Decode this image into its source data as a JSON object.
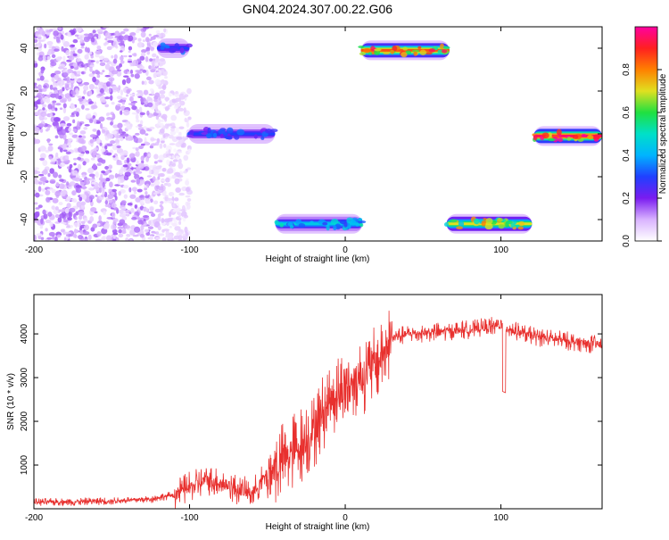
{
  "title": "GN04.2024.307.00.22.G06",
  "chart_data": [
    {
      "type": "heatmap",
      "xlabel": "Height of straight line (km)",
      "ylabel": "Frequency (Hz)",
      "xlim": [
        -200,
        165
      ],
      "ylim": [
        -50,
        50
      ],
      "xticks": [
        -200,
        -100,
        0,
        100
      ],
      "yticks": [
        -40,
        -20,
        0,
        20,
        40
      ],
      "colorbar": {
        "label": "Normalized spectral amplitude",
        "ticks": [
          "0.0",
          "0.2",
          "0.4",
          "0.6",
          "0.8"
        ],
        "range": [
          0,
          1
        ],
        "colors": [
          "#ffffff",
          "#d9b3ff",
          "#7a1cf0",
          "#2040ff",
          "#00b4ff",
          "#00e0c8",
          "#20e040",
          "#e0e020",
          "#ff8000",
          "#ff2020",
          "#ff00a0"
        ]
      },
      "features": [
        {
          "kind": "noise",
          "x": [
            -200,
            -115
          ],
          "y": [
            -50,
            50
          ],
          "amplitude": 0.1
        },
        {
          "kind": "noise",
          "x": [
            -115,
            -100
          ],
          "y": [
            -50,
            20
          ],
          "amplitude": 0.05
        },
        {
          "kind": "trace",
          "x": [
            -121,
            -100
          ],
          "y": 40,
          "amplitude": 0.3
        },
        {
          "kind": "trace",
          "x": [
            -101,
            -45
          ],
          "y": 0,
          "amplitude": 0.3
        },
        {
          "kind": "trace",
          "x": [
            -45,
            11
          ],
          "y": -42,
          "amplitude": 0.45
        },
        {
          "kind": "trace",
          "x": [
            10,
            67
          ],
          "y": 39,
          "amplitude": 0.85
        },
        {
          "kind": "trace",
          "x": [
            65,
            120
          ],
          "y": -42,
          "amplitude": 0.7
        },
        {
          "kind": "trace",
          "x": [
            121,
            165
          ],
          "y": -1,
          "amplitude": 0.95
        }
      ]
    },
    {
      "type": "line",
      "xlabel": "Height of straight line (km)",
      "ylabel": "SNR (10 * v/v)",
      "xlim": [
        -200,
        165
      ],
      "ylim": [
        0,
        4900
      ],
      "xticks": [
        -200,
        -100,
        0,
        100
      ],
      "yticks": [
        1000,
        2000,
        3000,
        4000
      ],
      "color": "#e8302e",
      "series": [
        {
          "x": [
            -200,
            -175,
            -150,
            -125,
            -110,
            -100,
            -90,
            -80,
            -70,
            -60,
            -50,
            -40,
            -30,
            -20,
            -10,
            0,
            10,
            20,
            30,
            40,
            60,
            80,
            100,
            110,
            120,
            140,
            165
          ],
          "y": [
            150,
            160,
            180,
            220,
            320,
            500,
            650,
            600,
            450,
            350,
            800,
            1100,
            1400,
            1800,
            2500,
            2800,
            3000,
            3300,
            3900,
            4000,
            4050,
            4100,
            4200,
            4050,
            3950,
            3850,
            3750
          ]
        }
      ]
    }
  ]
}
